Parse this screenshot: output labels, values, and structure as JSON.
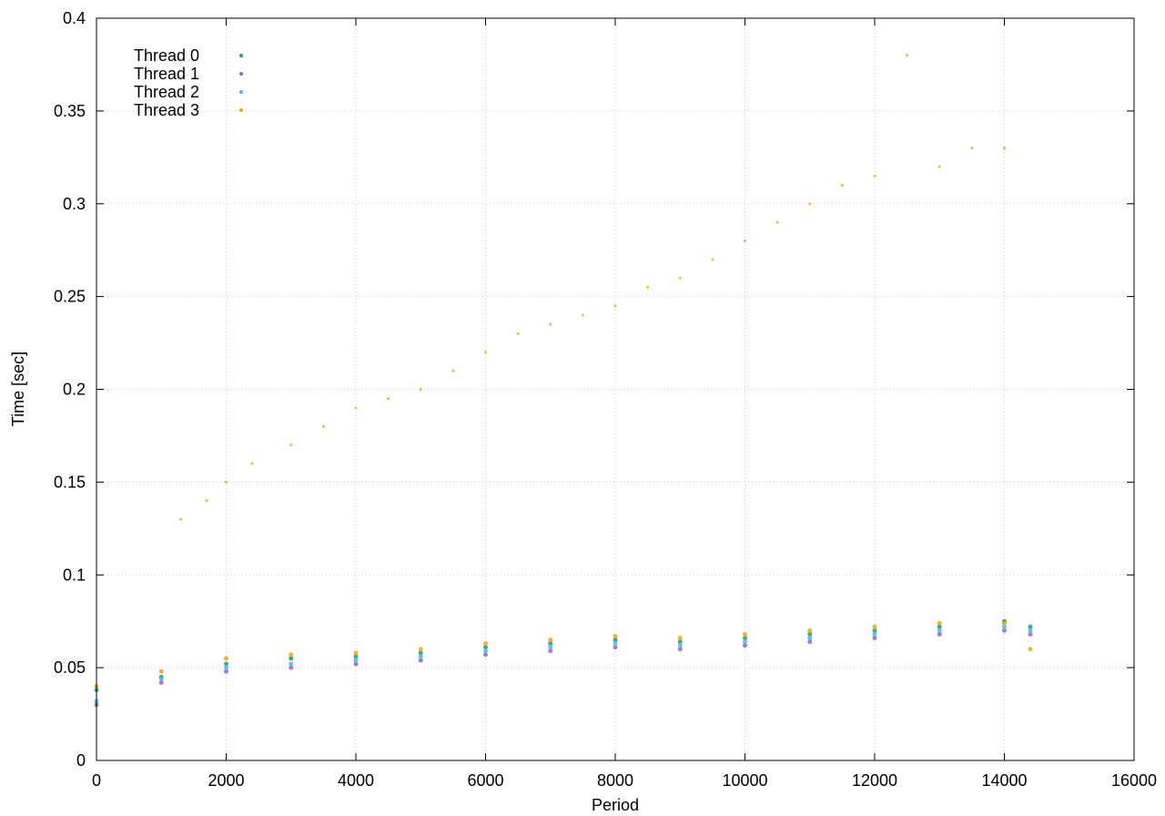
{
  "chart_data": {
    "type": "scatter",
    "title": "",
    "xlabel": "Period",
    "ylabel": "Time [sec]",
    "xlim": [
      0,
      16000
    ],
    "ylim": [
      0,
      0.4
    ],
    "x_ticks": [
      "0",
      "2000",
      "4000",
      "6000",
      "8000",
      "10000",
      "12000",
      "14000",
      "16000"
    ],
    "y_ticks": [
      "0",
      "0.05",
      "0.1",
      "0.15",
      "0.2",
      "0.25",
      "0.3",
      "0.35",
      "0.4"
    ],
    "grid": true,
    "legend_position": "top-left",
    "series": [
      {
        "name": "Thread 0",
        "color": "#1b9e77",
        "x": [
          0,
          1000,
          2000,
          3000,
          4000,
          5000,
          6000,
          7000,
          8000,
          9000,
          10000,
          11000,
          12000,
          13000,
          14000,
          14400
        ],
        "y": [
          0.038,
          0.045,
          0.052,
          0.055,
          0.056,
          0.058,
          0.061,
          0.063,
          0.065,
          0.064,
          0.066,
          0.068,
          0.07,
          0.072,
          0.075,
          0.072
        ]
      },
      {
        "name": "Thread 1",
        "color": "#9467bd",
        "x": [
          0,
          1000,
          2000,
          3000,
          4000,
          5000,
          6000,
          7000,
          8000,
          9000,
          10000,
          11000,
          12000,
          13000,
          14000,
          14400
        ],
        "y": [
          0.03,
          0.042,
          0.048,
          0.05,
          0.052,
          0.054,
          0.057,
          0.059,
          0.061,
          0.06,
          0.062,
          0.064,
          0.066,
          0.068,
          0.07,
          0.068
        ]
      },
      {
        "name": "Thread 2",
        "color": "#56b4e9",
        "x": [
          0,
          1000,
          2000,
          3000,
          4000,
          5000,
          6000,
          7000,
          8000,
          9000,
          10000,
          11000,
          12000,
          13000,
          14000,
          14400
        ],
        "y": [
          0.032,
          0.044,
          0.05,
          0.052,
          0.054,
          0.056,
          0.059,
          0.061,
          0.063,
          0.062,
          0.064,
          0.066,
          0.068,
          0.07,
          0.072,
          0.07
        ]
      },
      {
        "name": "Thread 3",
        "color": "#e6a817",
        "x": [
          0,
          1000,
          2000,
          3000,
          4000,
          5000,
          6000,
          7000,
          8000,
          9000,
          10000,
          11000,
          12000,
          13000,
          14000,
          14400
        ],
        "y": [
          0.04,
          0.048,
          0.055,
          0.057,
          0.058,
          0.06,
          0.063,
          0.065,
          0.067,
          0.066,
          0.068,
          0.07,
          0.072,
          0.074,
          0.074,
          0.06
        ]
      }
    ],
    "outliers": {
      "color": "#e6a817",
      "x": [
        1300,
        1700,
        2000,
        2400,
        3000,
        3500,
        4000,
        4500,
        5000,
        5500,
        6000,
        6500,
        7000,
        7500,
        8000,
        8500,
        9000,
        9500,
        10000,
        10500,
        11000,
        11500,
        12000,
        12500,
        13000,
        13500,
        14000
      ],
      "y": [
        0.13,
        0.14,
        0.15,
        0.16,
        0.17,
        0.18,
        0.19,
        0.195,
        0.2,
        0.21,
        0.22,
        0.23,
        0.235,
        0.24,
        0.245,
        0.255,
        0.26,
        0.27,
        0.28,
        0.29,
        0.3,
        0.31,
        0.315,
        0.38,
        0.32,
        0.33,
        0.33
      ]
    }
  }
}
